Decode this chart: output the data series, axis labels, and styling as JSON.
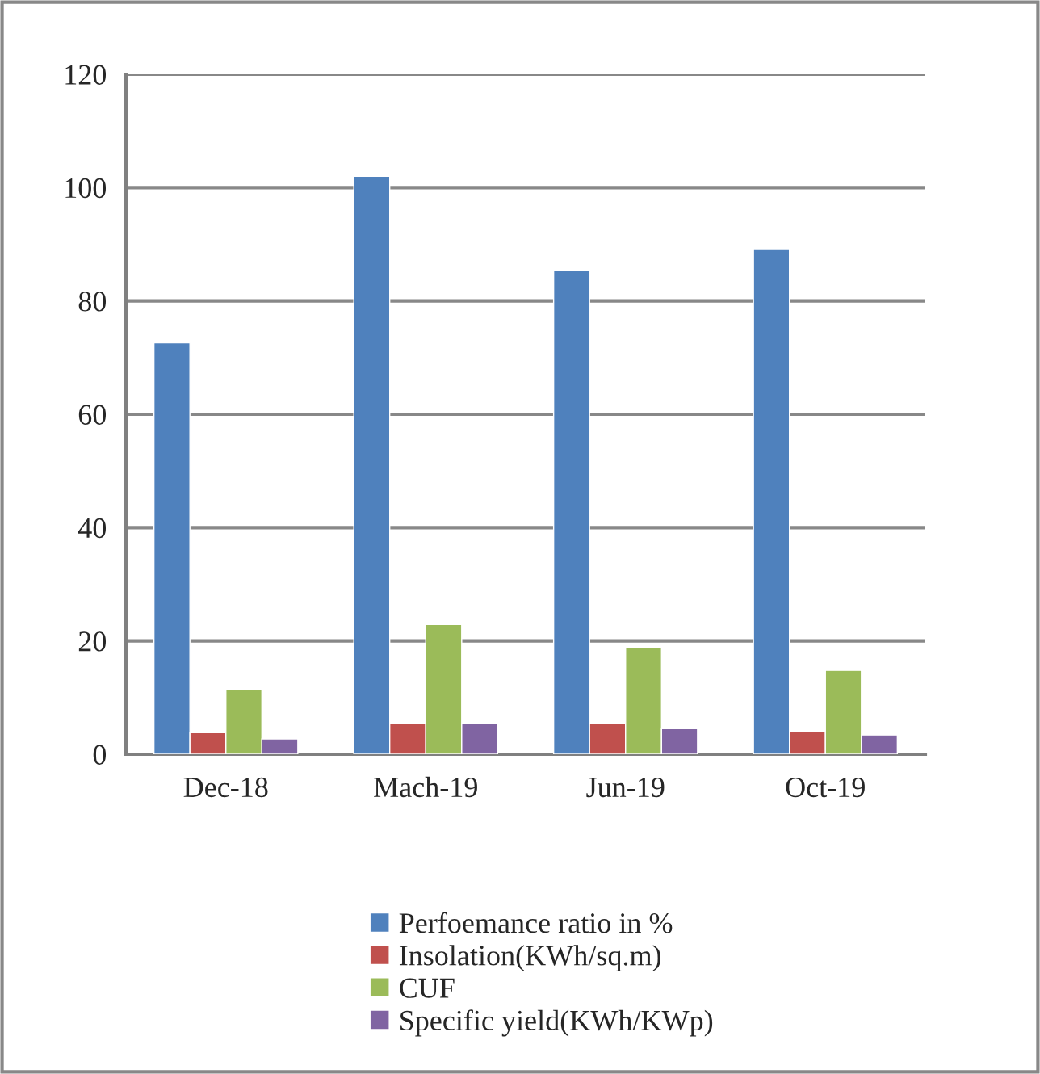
{
  "chart_data": {
    "type": "bar",
    "categories": [
      "Dec-18",
      "Mach-19",
      "Jun-19",
      "Oct-19"
    ],
    "series": [
      {
        "name": "Perfoemance ratio in %",
        "color": "#4f81bd",
        "values": [
          72.6,
          102.0,
          85.4,
          89.2
        ]
      },
      {
        "name": "Insolation(KWh/sq.m)",
        "color": "#c0504d",
        "values": [
          3.8,
          5.5,
          5.5,
          4.1
        ]
      },
      {
        "name": "CUF",
        "color": "#9bbb59",
        "values": [
          11.4,
          22.9,
          18.9,
          14.8
        ]
      },
      {
        "name": "Specific yield(KWh/KWp)",
        "color": "#8064a2",
        "values": [
          2.7,
          5.4,
          4.5,
          3.4
        ]
      }
    ],
    "ylim": [
      0,
      120
    ],
    "yticks": [
      0,
      20,
      40,
      60,
      80,
      100,
      120
    ],
    "grid": "y",
    "legend": "bottom"
  }
}
